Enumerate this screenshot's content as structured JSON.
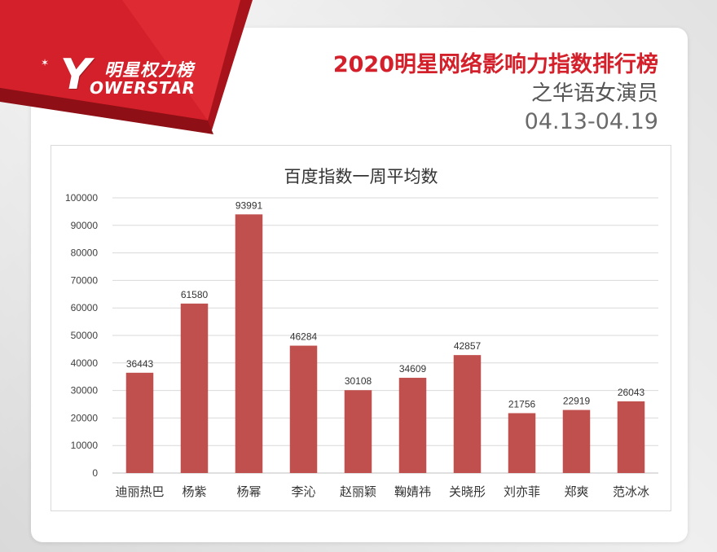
{
  "header": {
    "logo_cn": "明星权力榜",
    "logo_letter": "Y",
    "logo_en": "OWERSTAR",
    "title": "2020明星网络影响力指数排行榜",
    "subtitle": "之华语女演员",
    "date_range": "04.13-04.19"
  },
  "colors": {
    "ribbon": "#d3202a",
    "bar": "#c0504d",
    "title": "#d3202a"
  },
  "chart_data": {
    "type": "bar",
    "title": "百度指数一周平均数",
    "categories": [
      "迪丽热巴",
      "杨紫",
      "杨幂",
      "李沁",
      "赵丽颖",
      "鞠婧祎",
      "关晓彤",
      "刘亦菲",
      "郑爽",
      "范冰冰"
    ],
    "values": [
      36443,
      61580,
      93991,
      46284,
      30108,
      34609,
      42857,
      21756,
      22919,
      26043
    ],
    "ylim": [
      0,
      100000
    ],
    "yticks": [
      0,
      10000,
      20000,
      30000,
      40000,
      50000,
      60000,
      70000,
      80000,
      90000,
      100000
    ],
    "grid": true,
    "data_labels": true,
    "xlabel": "",
    "ylabel": ""
  }
}
